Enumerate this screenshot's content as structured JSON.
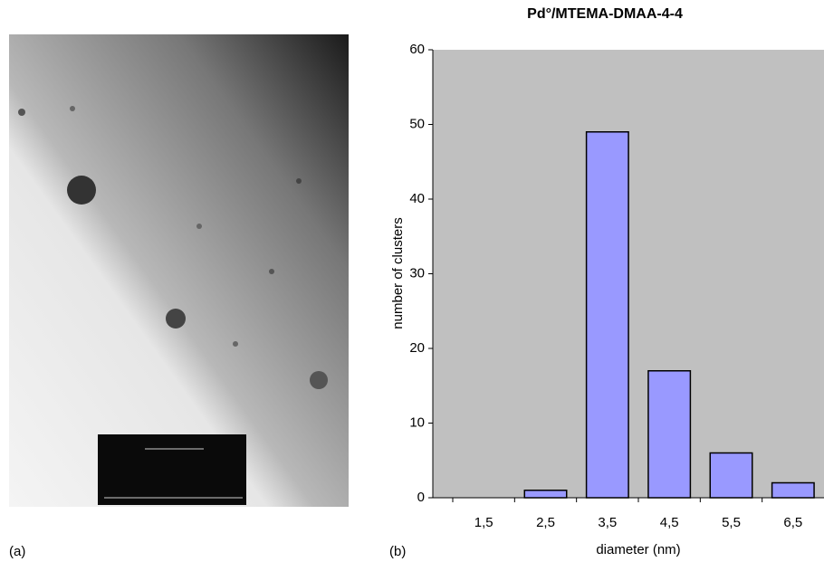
{
  "panel_labels": [
    "(a)",
    "(b)"
  ],
  "chart_data": {
    "type": "bar",
    "title": "Pd°/MTEMA-DMAA-4-4",
    "x_label": "diameter (nm)",
    "y_label": "number of clusters",
    "categories": [
      "1,5",
      "2,5",
      "3,5",
      "4,5",
      "5,5",
      "6,5"
    ],
    "values": [
      0,
      1,
      49,
      17,
      6,
      2
    ],
    "color": "#9999ff",
    "ylim": [
      0,
      60
    ],
    "yticks": [
      0,
      10,
      20,
      30,
      40,
      50,
      60
    ],
    "grid": false
  }
}
